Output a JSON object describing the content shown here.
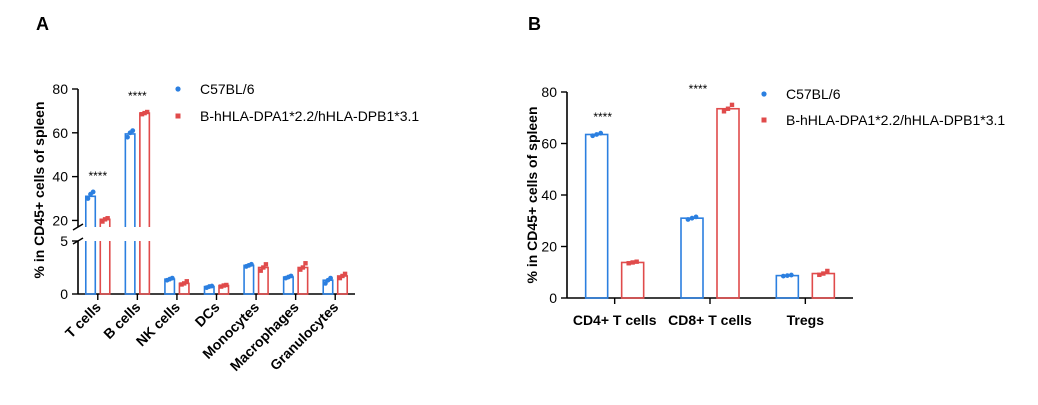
{
  "colors": {
    "wt": "#2b7fe0",
    "hu": "#e04b4b"
  },
  "chart_data": [
    {
      "panel": "A",
      "type": "bar",
      "ylabel": "% in CD45+ cells of spleen",
      "ylim": [
        0,
        80
      ],
      "axis_break": [
        5,
        17
      ],
      "yticks_lower": [
        0,
        5
      ],
      "yticks_upper": [
        20,
        40,
        60,
        80
      ],
      "categories": [
        "T cells",
        "B cells",
        "NK cells",
        "DCs",
        "Monocytes",
        "Macrophages",
        "Granulocytes"
      ],
      "series": [
        {
          "name": "C57BL/6",
          "color": "#2b7fe0",
          "values": [
            31,
            59.5,
            1.4,
            0.7,
            2.7,
            1.6,
            1.3
          ],
          "points": [
            [
              30,
              32,
              33
            ],
            [
              58,
              60,
              61
            ],
            [
              1.3,
              1.4,
              1.5
            ],
            [
              0.6,
              0.7,
              0.75
            ],
            [
              2.6,
              2.7,
              2.8
            ],
            [
              1.5,
              1.6,
              1.7
            ],
            [
              1.0,
              1.3,
              1.5
            ]
          ]
        },
        {
          "name": "B-hHLA-DPA1*2.2/hHLA-DPB1*3.1",
          "color": "#e04b4b",
          "values": [
            20.5,
            69,
            1.0,
            0.8,
            2.5,
            2.5,
            1.7
          ],
          "points": [
            [
              19.5,
              20.5,
              21
            ],
            [
              68.5,
              69,
              69.5
            ],
            [
              0.9,
              1.0,
              1.2
            ],
            [
              0.7,
              0.8,
              0.85
            ],
            [
              2.2,
              2.5,
              2.8
            ],
            [
              2.3,
              2.5,
              2.9
            ],
            [
              1.5,
              1.7,
              1.9
            ]
          ]
        }
      ],
      "annotations": [
        {
          "category": "T cells",
          "text": "****"
        },
        {
          "category": "B cells",
          "text": "****"
        }
      ],
      "legend": [
        "C57BL/6",
        "B-hHLA-DPA1*2.2/hHLA-DPB1*3.1"
      ]
    },
    {
      "panel": "B",
      "type": "bar",
      "ylabel": "% in CD45+ cells of spleen",
      "ylim": [
        0,
        80
      ],
      "yticks": [
        0,
        20,
        40,
        60,
        80
      ],
      "categories": [
        "CD4+ T cells",
        "CD8+ T cells",
        "Tregs"
      ],
      "series": [
        {
          "name": "C57BL/6",
          "color": "#2b7fe0",
          "values": [
            63.5,
            31,
            8.7
          ],
          "points": [
            [
              63,
              63.5,
              64
            ],
            [
              30.5,
              31,
              31.5
            ],
            [
              8.5,
              8.7,
              8.9
            ]
          ]
        },
        {
          "name": "B-hHLA-DPA1*2.2/hHLA-DPB1*3.1",
          "color": "#e04b4b",
          "values": [
            13.8,
            73.5,
            9.5
          ],
          "points": [
            [
              13.5,
              13.8,
              14.1
            ],
            [
              72.5,
              73.5,
              75
            ],
            [
              9.0,
              9.5,
              10.5
            ]
          ]
        }
      ],
      "annotations": [
        {
          "category": "CD4+ T cells",
          "text": "****"
        },
        {
          "category": "CD8+ T cells",
          "text": "****"
        }
      ],
      "legend": [
        "C57BL/6",
        "B-hHLA-DPA1*2.2/hHLA-DPB1*3.1"
      ]
    }
  ]
}
